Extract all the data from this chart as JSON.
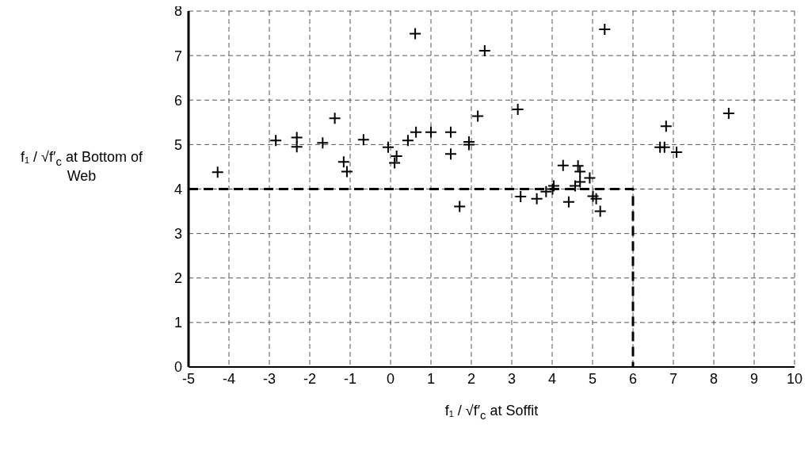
{
  "chart_data": {
    "type": "scatter",
    "xlabel": "f₁ / √f′$_{c}$ at Soffit",
    "ylabel": "f₁ / √f′$_{c}$ at Bottom of Web",
    "xlim": [
      -5,
      10
    ],
    "ylim": [
      0,
      8
    ],
    "xticks": [
      -5,
      -4,
      -3,
      -2,
      -1,
      0,
      1,
      2,
      3,
      4,
      5,
      6,
      7,
      8,
      9,
      10
    ],
    "yticks": [
      0,
      1,
      2,
      3,
      4,
      5,
      6,
      7,
      8
    ],
    "grid": true,
    "series": [
      {
        "marker": "cross",
        "color": "#000000",
        "x": [
          -4.28,
          -2.84,
          -2.32,
          -2.32,
          -1.68,
          -1.38,
          -1.16,
          -1.08,
          -0.67,
          -0.06,
          0.15,
          0.1,
          0.43,
          0.61,
          0.63,
          1.0,
          1.49,
          1.49,
          1.71,
          1.94,
          1.94,
          2.16,
          2.33,
          3.15,
          5.3,
          6.82,
          6.67,
          6.78,
          7.08,
          8.37,
          3.22,
          3.62,
          3.85,
          4.01,
          4.04,
          4.27,
          4.41,
          4.64,
          4.69,
          4.57,
          4.69,
          4.93,
          5.01,
          5.09,
          5.19
        ],
        "values": [
          4.38,
          5.09,
          5.16,
          4.95,
          5.04,
          5.59,
          4.61,
          4.39,
          5.11,
          4.94,
          4.74,
          4.59,
          5.09,
          7.49,
          5.28,
          5.28,
          5.28,
          4.79,
          3.61,
          5.06,
          5.0,
          5.64,
          7.11,
          5.79,
          7.59,
          5.41,
          4.94,
          4.94,
          4.83,
          5.7,
          3.83,
          3.78,
          3.94,
          4.0,
          4.07,
          4.53,
          3.71,
          4.52,
          4.39,
          4.07,
          4.16,
          4.25,
          3.84,
          3.78,
          3.5
        ]
      },
      {
        "type": "line",
        "marker": "none",
        "color": "#000000",
        "line_style": "dashed",
        "x": [
          -5,
          6,
          6
        ],
        "values": [
          4,
          4,
          0
        ]
      }
    ]
  }
}
